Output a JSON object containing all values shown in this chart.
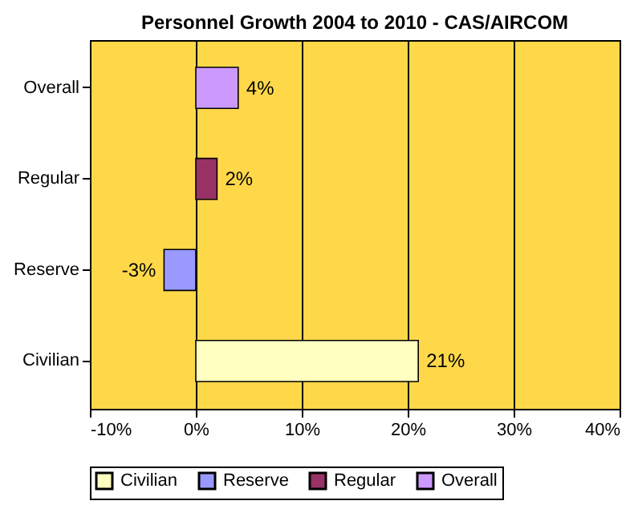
{
  "chart_data": {
    "type": "bar",
    "orientation": "horizontal",
    "title": "Personnel Growth 2004 to 2010 - CAS/AIRCOM",
    "categories": [
      "Overall",
      "Regular",
      "Reserve",
      "Civilian"
    ],
    "series": [
      {
        "name": "Civilian",
        "color": "#ffffc0",
        "values": [
          null,
          null,
          null,
          21
        ],
        "value_labels": [
          null,
          null,
          null,
          "21%"
        ]
      },
      {
        "name": "Reserve",
        "color": "#9999ff",
        "values": [
          null,
          null,
          -3,
          null
        ],
        "value_labels": [
          null,
          null,
          "-3%",
          null
        ]
      },
      {
        "name": "Regular",
        "color": "#993366",
        "values": [
          null,
          2,
          null,
          null
        ],
        "value_labels": [
          null,
          "2%",
          null,
          null
        ]
      },
      {
        "name": "Overall",
        "color": "#cc99ff",
        "values": [
          4,
          null,
          null,
          null
        ],
        "value_labels": [
          "4%",
          null,
          null,
          null
        ]
      }
    ],
    "xlim": [
      -10,
      40
    ],
    "xticks": [
      {
        "value": -10,
        "label": "-10%"
      },
      {
        "value": 0,
        "label": "0%"
      },
      {
        "value": 10,
        "label": "10%"
      },
      {
        "value": 20,
        "label": "20%"
      },
      {
        "value": 30,
        "label": "30%"
      },
      {
        "value": 40,
        "label": "40%"
      }
    ],
    "grid": "x",
    "legend": "bottom"
  }
}
